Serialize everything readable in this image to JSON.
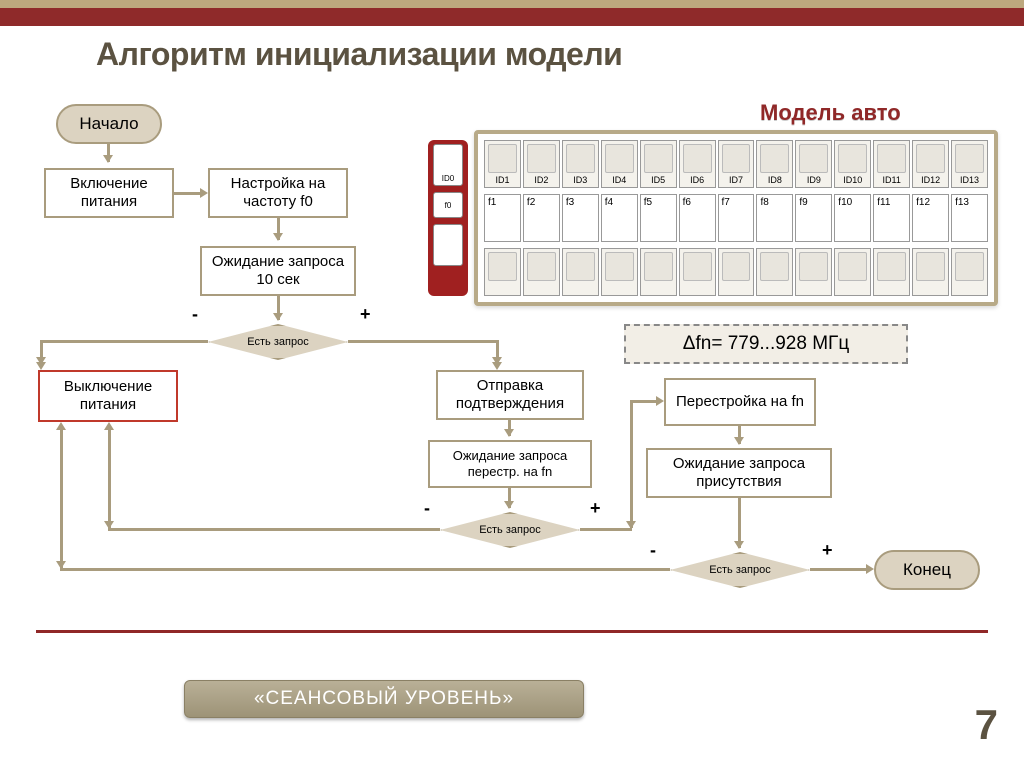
{
  "slide": {
    "title": "Алгоритм инициализации модели",
    "subtitle": "Модель авто",
    "footer": "«СЕАНСОВЫЙ УРОВЕНЬ»",
    "page": "7"
  },
  "flowchart": {
    "type": "flowchart",
    "colors": {
      "node_fill": "#ffffff",
      "term_fill": "#dcd3c1",
      "border": "#a99c7e",
      "accent_border": "#c0392b",
      "arrow": "#a99c7e"
    },
    "nodes": {
      "start": "Начало",
      "power_on": "Включение питания",
      "tune_f0": "Настройка на частоту f0",
      "wait10": "Ожидание запроса 10 сек",
      "dec1": "Есть запрос",
      "power_off": "Выключение питания",
      "send_ack": "Отправка подтверждения",
      "wait_fn": "Ожидание запроса перестр. на fn",
      "dec2": "Есть запрос",
      "tune_fn": "Перестройка на fn",
      "wait_presence": "Ожидание запроса присутствия",
      "dec3": "Есть запрос",
      "end": "Конец"
    },
    "branch_minus": "-",
    "branch_plus": "+"
  },
  "panel": {
    "id0": "ID0",
    "f0": "f0"
  },
  "model_table": {
    "ids": [
      "ID1",
      "ID2",
      "ID3",
      "ID4",
      "ID5",
      "ID6",
      "ID7",
      "ID8",
      "ID9",
      "ID10",
      "ID11",
      "ID12",
      "ID13"
    ],
    "fs": [
      "f1",
      "f2",
      "f3",
      "f4",
      "f5",
      "f6",
      "f7",
      "f8",
      "f9",
      "f10",
      "f11",
      "f12",
      "f13"
    ]
  },
  "freq": "Δfn= 779...928 МГц"
}
